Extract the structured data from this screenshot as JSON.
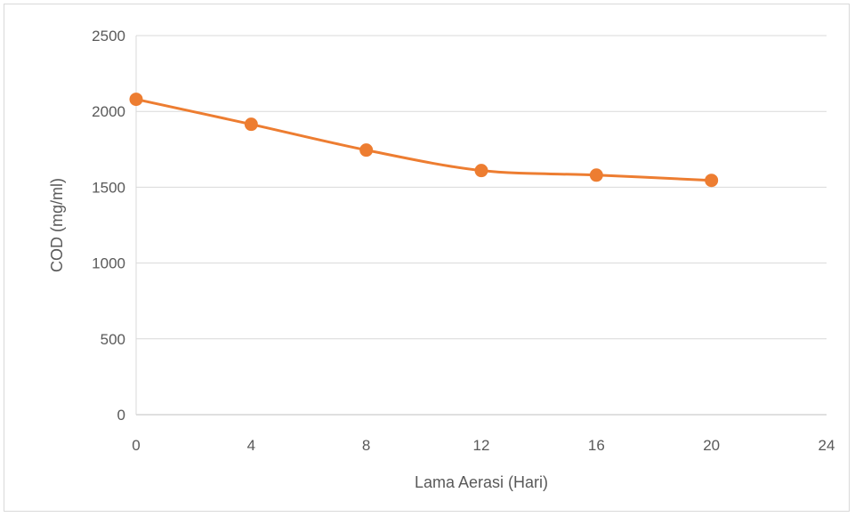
{
  "chart_data": {
    "type": "scatter",
    "title": "",
    "xlabel": "Lama Aerasi (Hari)",
    "ylabel": "COD (mg/ml)",
    "xlim": [
      0,
      24
    ],
    "ylim": [
      0,
      2500
    ],
    "x_ticks": [
      0,
      4,
      8,
      12,
      16,
      20,
      24
    ],
    "y_ticks": [
      0,
      500,
      1000,
      1500,
      2000,
      2500
    ],
    "grid": "horizontal",
    "legend": "none",
    "smoothed_line": true,
    "series": [
      {
        "color": "#ed7d31",
        "points": [
          {
            "x": 0,
            "y": 2080
          },
          {
            "x": 4,
            "y": 1915
          },
          {
            "x": 8,
            "y": 1745
          },
          {
            "x": 12,
            "y": 1610
          },
          {
            "x": 16,
            "y": 1580
          },
          {
            "x": 20,
            "y": 1545
          }
        ]
      }
    ]
  }
}
